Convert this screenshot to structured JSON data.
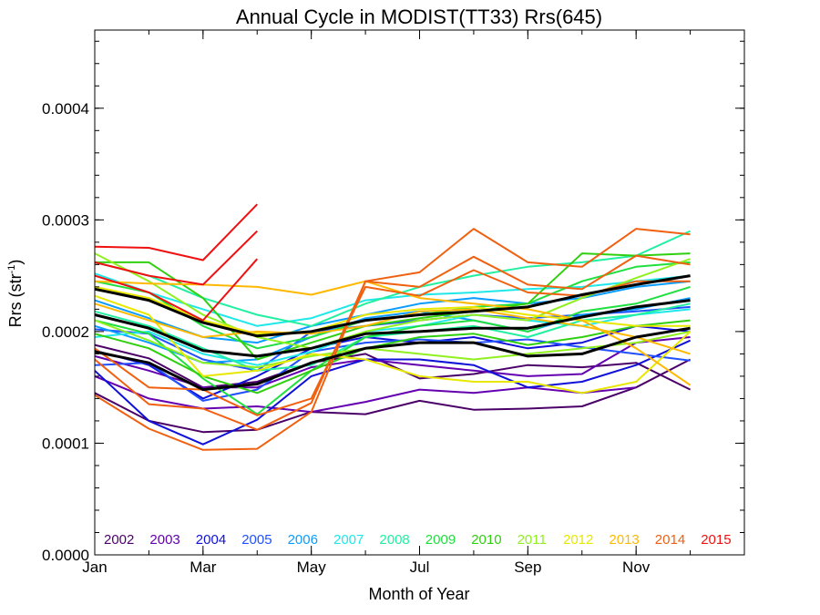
{
  "chart_data": {
    "type": "line",
    "title": "Annual Cycle in MODIST(TT33) Rrs(645)",
    "xlabel": "Month of Year",
    "ylabel_main": "Rrs (str",
    "ylabel_sup": "-1",
    "ylabel_close": ")",
    "xlim": [
      1,
      13
    ],
    "ylim": [
      0,
      0.00047
    ],
    "x_ticks": [
      {
        "value": 1,
        "label": "Jan"
      },
      {
        "value": 3,
        "label": "Mar"
      },
      {
        "value": 5,
        "label": "May"
      },
      {
        "value": 7,
        "label": "Jul"
      },
      {
        "value": 9,
        "label": "Sep"
      },
      {
        "value": 11,
        "label": "Nov"
      }
    ],
    "y_ticks": [
      {
        "value": 0,
        "label": "0.0000"
      },
      {
        "value": 0.0001,
        "label": "0.0001"
      },
      {
        "value": 0.0002,
        "label": "0.0002"
      },
      {
        "value": 0.0003,
        "label": "0.0003"
      },
      {
        "value": 0.0004,
        "label": "0.0004"
      }
    ],
    "grid": false,
    "legend_position": "bottom, inside plot area",
    "series": [
      {
        "name": "2002",
        "color": "#4a0068",
        "x": [
          1,
          2,
          3,
          4,
          5,
          6,
          7,
          8,
          9,
          10,
          11,
          12
        ],
        "values": [
          0.000188,
          0.000176,
          0.00015,
          0.000155,
          0.000172,
          0.00018,
          0.000158,
          0.000162,
          0.00017,
          0.000168,
          0.000172,
          0.000148
        ]
      },
      {
        "name": "2002",
        "color": "#4a0068",
        "x": [
          1,
          2,
          3,
          4,
          5,
          6,
          7,
          8,
          9,
          10,
          11,
          12
        ],
        "values": [
          0.000145,
          0.00012,
          0.00011,
          0.000112,
          0.000128,
          0.000126,
          0.000138,
          0.00013,
          0.000131,
          0.000133,
          0.00015,
          0.000175
        ]
      },
      {
        "name": "2003",
        "color": "#6400b0",
        "x": [
          1,
          2,
          3,
          4,
          5,
          6,
          7,
          8,
          9,
          10,
          11,
          12
        ],
        "values": [
          0.000178,
          0.000165,
          0.00015,
          0.00015,
          0.000168,
          0.000175,
          0.00017,
          0.000165,
          0.00016,
          0.000162,
          0.00019,
          0.000195
        ]
      },
      {
        "name": "2003",
        "color": "#6400b0",
        "x": [
          1,
          2,
          3,
          4,
          5,
          6,
          7,
          8,
          9,
          10,
          11
        ],
        "values": [
          0.00016,
          0.00014,
          0.000131,
          0.000133,
          0.000128,
          0.000137,
          0.000148,
          0.000145,
          0.00015,
          0.000145,
          0.00015
        ]
      },
      {
        "name": "2004",
        "color": "#1010d8",
        "x": [
          1,
          2,
          3,
          4,
          5,
          6,
          7,
          8,
          9,
          10,
          11,
          12
        ],
        "values": [
          0.000165,
          0.00012,
          9.9e-05,
          0.000121,
          0.00016,
          0.000175,
          0.000175,
          0.00017,
          0.00015,
          0.000155,
          0.00017,
          0.000192
        ]
      },
      {
        "name": "2004",
        "color": "#1010d8",
        "x": [
          1,
          2,
          3,
          4,
          5,
          6,
          7,
          8,
          9,
          10,
          11,
          12
        ],
        "values": [
          0.000183,
          0.00017,
          0.00014,
          0.00016,
          0.000185,
          0.000195,
          0.00019,
          0.000195,
          0.000185,
          0.00019,
          0.000205,
          0.0002
        ]
      },
      {
        "name": "2005",
        "color": "#2050ff",
        "x": [
          1,
          2,
          3,
          4,
          5,
          6,
          7,
          8,
          9,
          10,
          11,
          12
        ],
        "values": [
          0.00017,
          0.000172,
          0.000138,
          0.000148,
          0.000182,
          0.00019,
          0.000193,
          0.00019,
          0.000193,
          0.000186,
          0.00018,
          0.000174
        ]
      },
      {
        "name": "2005",
        "color": "#2050ff",
        "x": [
          1,
          2,
          3,
          4,
          5,
          6,
          7,
          8,
          9,
          10,
          11,
          12
        ],
        "values": [
          0.000202,
          0.000198,
          0.000175,
          0.000165,
          0.0002,
          0.000205,
          0.00021,
          0.000215,
          0.000212,
          0.000215,
          0.000218,
          0.000222
        ]
      },
      {
        "name": "2006",
        "color": "#0a9cff",
        "x": [
          1,
          2,
          3,
          4,
          5,
          6,
          7,
          8,
          9,
          10,
          11,
          12
        ],
        "values": [
          0.000205,
          0.00019,
          0.000172,
          0.000175,
          0.000195,
          0.000212,
          0.000218,
          0.00021,
          0.0002,
          0.000215,
          0.00022,
          0.00023
        ]
      },
      {
        "name": "2006",
        "color": "#0a9cff",
        "x": [
          1,
          2,
          3,
          4,
          5,
          6,
          7,
          8,
          9,
          10,
          11,
          12
        ],
        "values": [
          0.000228,
          0.000212,
          0.000195,
          0.00019,
          0.000205,
          0.000215,
          0.000225,
          0.00023,
          0.000225,
          0.00023,
          0.00024,
          0.000245
        ]
      },
      {
        "name": "2007",
        "color": "#20e8e8",
        "x": [
          1,
          2,
          3,
          4,
          5,
          6,
          7,
          8,
          9,
          10,
          11,
          12
        ],
        "values": [
          0.000252,
          0.000235,
          0.00022,
          0.000205,
          0.000212,
          0.000228,
          0.000233,
          0.000235,
          0.000238,
          0.00024,
          0.000245,
          0.00025
        ]
      },
      {
        "name": "2007",
        "color": "#20e8e8",
        "x": [
          1,
          2,
          3,
          4,
          5,
          6,
          7,
          8,
          9,
          10,
          11,
          12
        ],
        "values": [
          0.000195,
          0.0002,
          0.00018,
          0.00017,
          0.000182,
          0.0002,
          0.000205,
          0.000215,
          0.00021,
          0.000205,
          0.000215,
          0.00022
        ]
      },
      {
        "name": "2008",
        "color": "#20f0a0",
        "x": [
          1,
          2,
          3,
          4,
          5,
          6,
          7,
          8,
          9,
          10,
          11,
          12
        ],
        "values": [
          0.000262,
          0.00025,
          0.00023,
          0.000215,
          0.000205,
          0.000225,
          0.00024,
          0.00025,
          0.000258,
          0.000262,
          0.000268,
          0.00029
        ]
      },
      {
        "name": "2008",
        "color": "#20f0a0",
        "x": [
          1,
          2,
          3,
          4,
          5,
          6,
          7,
          8,
          9,
          10,
          11,
          12
        ],
        "values": [
          0.000218,
          0.000205,
          0.000185,
          0.000165,
          0.00017,
          0.000195,
          0.0002,
          0.000205,
          0.000195,
          0.00021,
          0.000215,
          0.000225
        ]
      },
      {
        "name": "2009",
        "color": "#20e040",
        "x": [
          1,
          2,
          3,
          4,
          5,
          6,
          7,
          8,
          9,
          10,
          11,
          12
        ],
        "values": [
          0.00021,
          0.000198,
          0.000158,
          0.000126,
          0.000165,
          0.000195,
          0.000205,
          0.00021,
          0.0002,
          0.000218,
          0.000225,
          0.00024
        ]
      },
      {
        "name": "2009",
        "color": "#20e040",
        "x": [
          1,
          2,
          3,
          4,
          5,
          6,
          7,
          8,
          9,
          10,
          11,
          12
        ],
        "values": [
          0.000245,
          0.000235,
          0.000205,
          0.000185,
          0.000195,
          0.00021,
          0.000215,
          0.000222,
          0.000225,
          0.000245,
          0.000258,
          0.000262
        ]
      },
      {
        "name": "2010",
        "color": "#30d010",
        "x": [
          1,
          2,
          3,
          4,
          5,
          6,
          7,
          8,
          9,
          10,
          11,
          12
        ],
        "values": [
          0.000262,
          0.000262,
          0.00023,
          0.000175,
          0.00019,
          0.000205,
          0.000212,
          0.000218,
          0.000225,
          0.00027,
          0.000268,
          0.00027
        ]
      },
      {
        "name": "2010",
        "color": "#30d010",
        "x": [
          1,
          2,
          3,
          4,
          5,
          6,
          7,
          8,
          9,
          10,
          11,
          12
        ],
        "values": [
          0.000198,
          0.000185,
          0.00016,
          0.000145,
          0.000165,
          0.000185,
          0.000195,
          0.000198,
          0.000188,
          0.000195,
          0.000205,
          0.00021
        ]
      },
      {
        "name": "2011",
        "color": "#90f020",
        "x": [
          1,
          2,
          3,
          4,
          5,
          6,
          7,
          8,
          9,
          10,
          11,
          12
        ],
        "values": [
          0.00027,
          0.000245,
          0.000215,
          0.000195,
          0.000185,
          0.0002,
          0.00021,
          0.000215,
          0.00021,
          0.00023,
          0.000248,
          0.000265
        ]
      },
      {
        "name": "2011",
        "color": "#90f020",
        "x": [
          1,
          2,
          3,
          4,
          5,
          6,
          7,
          8,
          9,
          10,
          11,
          12
        ],
        "values": [
          0.00021,
          0.000192,
          0.000172,
          0.000168,
          0.000178,
          0.000185,
          0.00018,
          0.000175,
          0.00018,
          0.000185,
          0.00019,
          0.0002
        ]
      },
      {
        "name": "2012",
        "color": "#e8e800",
        "x": [
          1,
          2,
          3,
          4,
          5,
          6,
          7,
          8,
          9,
          10,
          11,
          12
        ],
        "values": [
          0.000232,
          0.000215,
          0.00016,
          0.000165,
          0.00018,
          0.000175,
          0.00016,
          0.000155,
          0.000155,
          0.000145,
          0.000155,
          0.0002
        ]
      },
      {
        "name": "2012",
        "color": "#e8e800",
        "x": [
          1,
          2,
          3,
          4,
          5,
          6,
          7,
          8,
          9,
          10,
          11,
          12
        ],
        "values": [
          0.00024,
          0.00023,
          0.00021,
          0.000198,
          0.0002,
          0.000215,
          0.00022,
          0.000222,
          0.000215,
          0.00021,
          0.000205,
          0.000205
        ]
      },
      {
        "name": "2013",
        "color": "#ffb800",
        "x": [
          1,
          2,
          3,
          4,
          5,
          6,
          7,
          8,
          9,
          10,
          11,
          12
        ],
        "values": [
          0.000245,
          0.000243,
          0.000242,
          0.00024,
          0.000233,
          0.000245,
          0.00023,
          0.000225,
          0.00022,
          0.00021,
          0.000185,
          0.000152
        ]
      },
      {
        "name": "2013",
        "color": "#ffb800",
        "x": [
          1,
          2,
          3,
          4,
          5,
          6,
          7,
          8,
          9,
          10,
          11,
          12
        ],
        "values": [
          0.000225,
          0.00021,
          0.000195,
          0.0002,
          0.000198,
          0.000205,
          0.000218,
          0.00022,
          0.000212,
          0.000205,
          0.000195,
          0.00018
        ]
      },
      {
        "name": "2014",
        "color": "#f06010",
        "x": [
          1,
          2,
          3,
          4,
          5,
          6,
          7,
          8,
          9,
          10,
          11,
          12
        ],
        "values": [
          0.000143,
          0.000113,
          9.4e-05,
          9.5e-05,
          0.000128,
          0.000245,
          0.000253,
          0.000292,
          0.000262,
          0.000258,
          0.000292,
          0.000287
        ]
      },
      {
        "name": "2014",
        "color": "#f06010",
        "x": [
          1,
          2,
          3,
          4,
          5,
          6,
          7,
          8,
          9,
          10,
          11,
          12
        ],
        "values": [
          0.000175,
          0.000135,
          0.000131,
          0.000112,
          0.000136,
          0.000245,
          0.00024,
          0.000267,
          0.000242,
          0.000238,
          0.000268,
          0.00026
        ]
      },
      {
        "name": "2014",
        "color": "#f06010",
        "x": [
          1,
          2,
          3,
          4,
          5,
          6,
          7,
          8,
          9,
          10,
          11,
          12
        ],
        "values": [
          0.000185,
          0.00015,
          0.000148,
          0.000125,
          0.00014,
          0.00024,
          0.000232,
          0.000255,
          0.000235,
          0.000232,
          0.000245,
          0.000245
        ]
      },
      {
        "name": "2015",
        "color": "#f01010",
        "x": [
          1,
          2,
          3,
          4
        ],
        "values": [
          0.000276,
          0.000275,
          0.000264,
          0.000314
        ]
      },
      {
        "name": "2015",
        "color": "#f01010",
        "x": [
          1,
          2,
          3,
          4
        ],
        "values": [
          0.000262,
          0.00025,
          0.000242,
          0.00029
        ]
      },
      {
        "name": "2015",
        "color": "#f01010",
        "x": [
          1,
          2,
          3,
          4
        ],
        "values": [
          0.00025,
          0.000235,
          0.00021,
          0.000265
        ]
      },
      {
        "name": "",
        "color": "#000000",
        "mean": true,
        "x": [
          1,
          2,
          3,
          4,
          5,
          6,
          7,
          8,
          9,
          10,
          11,
          12
        ],
        "values": [
          0.000238,
          0.000228,
          0.000208,
          0.000196,
          0.0002,
          0.00021,
          0.000215,
          0.000218,
          0.000222,
          0.000233,
          0.000242,
          0.00025
        ]
      },
      {
        "name": "",
        "color": "#000000",
        "mean": true,
        "x": [
          1,
          2,
          3,
          4,
          5,
          6,
          7,
          8,
          9,
          10,
          11,
          12
        ],
        "values": [
          0.000215,
          0.000203,
          0.000183,
          0.000178,
          0.000185,
          0.000198,
          0.0002,
          0.000203,
          0.000203,
          0.000213,
          0.000222,
          0.000228
        ]
      },
      {
        "name": "",
        "color": "#000000",
        "mean": true,
        "x": [
          1,
          2,
          3,
          4,
          5,
          6,
          7,
          8,
          9,
          10,
          11,
          12
        ],
        "values": [
          0.000182,
          0.000172,
          0.000148,
          0.000153,
          0.000172,
          0.000185,
          0.00019,
          0.00019,
          0.000178,
          0.00018,
          0.000195,
          0.000203
        ]
      }
    ],
    "legend": [
      {
        "label": "2002",
        "color": "#4a0068"
      },
      {
        "label": "2003",
        "color": "#6400b0"
      },
      {
        "label": "2004",
        "color": "#1010d8"
      },
      {
        "label": "2005",
        "color": "#2050ff"
      },
      {
        "label": "2006",
        "color": "#0a9cff"
      },
      {
        "label": "2007",
        "color": "#20e8e8"
      },
      {
        "label": "2008",
        "color": "#20f0a0"
      },
      {
        "label": "2009",
        "color": "#20e040"
      },
      {
        "label": "2010",
        "color": "#30d010"
      },
      {
        "label": "2011",
        "color": "#90f020"
      },
      {
        "label": "2012",
        "color": "#e8e800"
      },
      {
        "label": "2013",
        "color": "#ffb800"
      },
      {
        "label": "2014",
        "color": "#f06010"
      },
      {
        "label": "2015",
        "color": "#f01010"
      }
    ]
  }
}
